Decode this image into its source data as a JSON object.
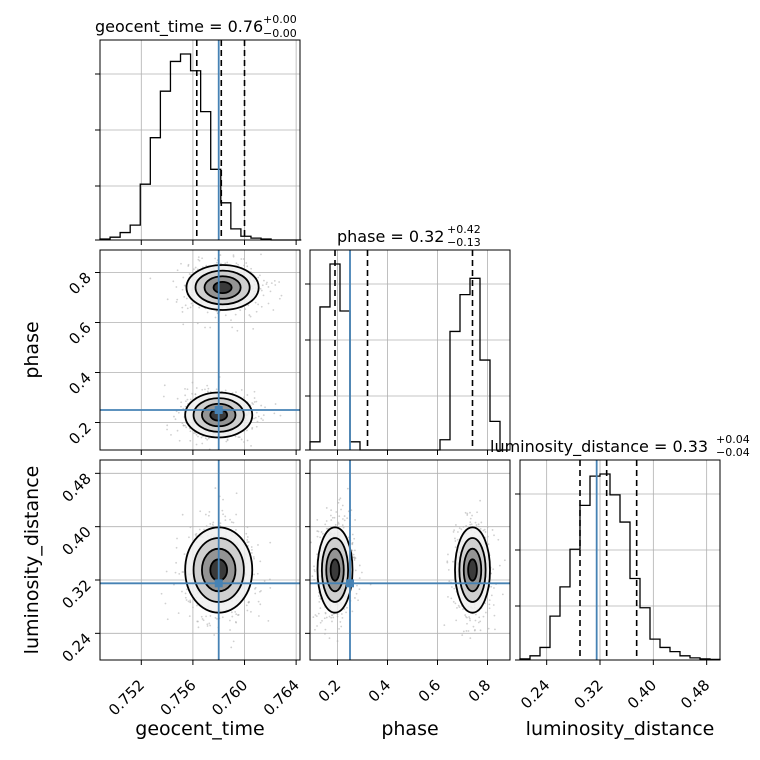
{
  "chart_data": {
    "type": "corner",
    "parameters": [
      "geocent_time",
      "phase",
      "luminosity_distance"
    ],
    "truth": {
      "geocent_time": 0.758,
      "phase": 0.25,
      "luminosity_distance": 0.315
    },
    "ranges": {
      "geocent_time": [
        0.7488,
        0.7643
      ],
      "phase": [
        0.09,
        0.89
      ],
      "luminosity_distance": [
        0.2,
        0.5
      ]
    },
    "ticks": {
      "geocent_time": [
        "0.752",
        "0.756",
        "0.760",
        "0.764"
      ],
      "phase": [
        "0.2",
        "0.4",
        "0.6",
        "0.8"
      ],
      "luminosity_distance": [
        "0.24",
        "0.32",
        "0.40",
        "0.48"
      ]
    },
    "titles": {
      "geocent_time": {
        "label": "geocent_time",
        "median": "0.76",
        "plus": "+0.00",
        "minus": "−0.00"
      },
      "phase": {
        "label": "phase",
        "median": "0.32",
        "plus": "+0.42",
        "minus": "−0.13"
      },
      "luminosity_distance": {
        "label": "luminosity_distance",
        "median": "0.33",
        "plus": "+0.04",
        "minus": "−0.04"
      }
    },
    "quantiles": {
      "geocent_time": [
        0.7563,
        0.7582,
        0.76
      ],
      "phase": [
        0.19,
        0.32,
        0.74
      ],
      "luminosity_distance": [
        0.29,
        0.33,
        0.375
      ]
    },
    "histograms": {
      "geocent_time": {
        "edges_start": 0.7488,
        "bin_width": 0.00078,
        "counts": [
          0.005,
          0.015,
          0.04,
          0.08,
          0.3,
          0.55,
          0.8,
          0.96,
          1.0,
          0.91,
          0.69,
          0.38,
          0.2,
          0.06,
          0.02,
          0.01,
          0.005,
          0,
          0,
          0
        ]
      },
      "phase": {
        "edges_start": 0.09,
        "bin_width": 0.04,
        "counts": [
          0.04,
          0.7,
          0.91,
          0.68,
          0.04,
          0,
          0,
          0,
          0,
          0,
          0,
          0,
          0,
          0.05,
          0.58,
          0.76,
          0.84,
          0.44,
          0.14,
          0
        ]
      },
      "luminosity_distance": {
        "edges_start": 0.2,
        "bin_width": 0.015,
        "counts": [
          0.005,
          0.02,
          0.06,
          0.21,
          0.35,
          0.53,
          0.74,
          0.88,
          0.89,
          0.79,
          0.66,
          0.39,
          0.25,
          0.1,
          0.06,
          0.04,
          0.02,
          0.01,
          0.005,
          0.003
        ]
      }
    },
    "clusters": {
      "geocent_time_vs_phase": [
        {
          "cx": 0.7583,
          "cy": 0.74,
          "sx": 0.0014,
          "sy": 0.045
        },
        {
          "cx": 0.758,
          "cy": 0.23,
          "sx": 0.0013,
          "sy": 0.045
        }
      ],
      "geocent_time_vs_luminosity_distance": [
        {
          "cx": 0.758,
          "cy": 0.335,
          "sx": 0.0013,
          "sy": 0.032
        }
      ],
      "phase_vs_luminosity_distance": [
        {
          "cx": 0.19,
          "cy": 0.335,
          "sx": 0.035,
          "sy": 0.032
        },
        {
          "cx": 0.74,
          "cy": 0.335,
          "sx": 0.035,
          "sy": 0.032
        }
      ]
    },
    "grid": true,
    "colors": {
      "truth": "#4682b4",
      "hist": "#000000",
      "scatter": "#b0b0b0",
      "grid": "#b0b0b0"
    }
  }
}
